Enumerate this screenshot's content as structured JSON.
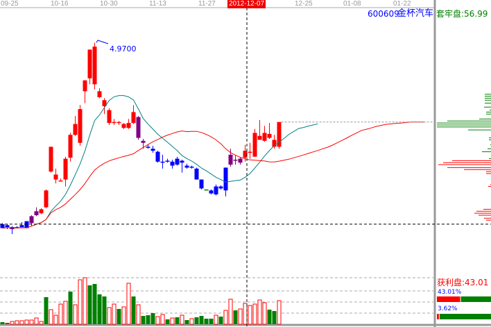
{
  "header": {
    "stock_code": "600609",
    "stock_name": "金杯汽车",
    "trapped_label": "套牢盘:56.99",
    "dates": [
      "09-25",
      "10-16",
      "10-30",
      "11-13",
      "11-27",
      "12-25",
      "01-08",
      "01-22"
    ],
    "cursor_date": "2012-12-07"
  },
  "peak_label": "4.9700",
  "profit_panel": {
    "profit_label": "获利盘:43.01",
    "bar1_label": "43.01%",
    "bar1_value": 43.01,
    "bar2_label": "3.62%",
    "bar2_value": 3.62
  },
  "colors": {
    "up": "#ff0000",
    "down": "#0000ff",
    "mark": "#800080",
    "ma_short": "#008080",
    "ma_long": "#ff0000",
    "vol_down": "#008000",
    "text_blue": "#0000ff",
    "text_green": "#008000",
    "text_red": "#ff0000"
  },
  "chart_data": {
    "type": "candlestick",
    "ohlc_fields": [
      "open",
      "high",
      "low",
      "close",
      "style"
    ],
    "candles": [
      [
        3.14,
        3.15,
        3.1,
        3.1,
        "down"
      ],
      [
        3.13,
        3.14,
        3.09,
        3.11,
        "down"
      ],
      [
        3.11,
        3.12,
        3.04,
        3.09,
        "down"
      ],
      [
        3.11,
        3.12,
        3.1,
        3.11,
        "down"
      ],
      [
        3.13,
        3.16,
        3.11,
        3.11,
        "down"
      ],
      [
        3.17,
        3.17,
        3.1,
        3.1,
        "down"
      ],
      [
        3.15,
        3.23,
        3.12,
        3.22,
        "mark"
      ],
      [
        3.23,
        3.31,
        3.22,
        3.27,
        "mark"
      ],
      [
        3.25,
        3.3,
        3.24,
        3.29,
        "up"
      ],
      [
        3.31,
        3.49,
        3.3,
        3.48,
        "up"
      ],
      [
        3.67,
        3.92,
        3.66,
        3.92,
        "up"
      ],
      [
        3.59,
        3.7,
        3.55,
        3.64,
        "up"
      ],
      [
        3.58,
        3.6,
        3.57,
        3.58,
        "up"
      ],
      [
        3.59,
        3.82,
        3.52,
        3.8,
        "up"
      ],
      [
        3.81,
        4.06,
        3.77,
        4.04,
        "up"
      ],
      [
        4.04,
        4.23,
        4.03,
        4.15,
        "up"
      ],
      [
        3.96,
        4.34,
        3.93,
        4.3,
        "up"
      ],
      [
        4.48,
        4.59,
        4.36,
        4.59,
        "up"
      ],
      [
        4.61,
        4.9,
        4.55,
        4.9,
        "up"
      ],
      [
        4.55,
        4.97,
        4.5,
        4.93,
        "up"
      ],
      [
        4.42,
        4.51,
        4.41,
        4.48,
        "up"
      ],
      [
        4.33,
        4.41,
        4.25,
        4.39,
        "up"
      ],
      [
        4.16,
        4.31,
        4.14,
        4.29,
        "up"
      ],
      [
        4.16,
        4.2,
        4.14,
        4.17,
        "up"
      ],
      [
        4.16,
        4.18,
        4.14,
        4.17,
        "up"
      ],
      [
        4.11,
        4.16,
        4.1,
        4.15,
        "up"
      ],
      [
        4.11,
        4.2,
        4.1,
        4.16,
        "up"
      ],
      [
        4.16,
        4.34,
        4.15,
        4.27,
        "up"
      ],
      [
        4.22,
        4.23,
        3.99,
        4.01,
        "mark"
      ],
      [
        3.98,
        4.0,
        3.9,
        3.96,
        "mark"
      ],
      [
        3.92,
        3.94,
        3.9,
        3.92,
        "down"
      ],
      [
        3.9,
        3.93,
        3.86,
        3.88,
        "down"
      ],
      [
        3.87,
        3.88,
        3.76,
        3.77,
        "down"
      ],
      [
        3.77,
        3.84,
        3.7,
        3.77,
        "down"
      ],
      [
        3.78,
        3.8,
        3.76,
        3.77,
        "down"
      ],
      [
        3.77,
        3.79,
        3.7,
        3.73,
        "down"
      ],
      [
        3.8,
        3.82,
        3.73,
        3.74,
        "down"
      ],
      [
        3.78,
        3.79,
        3.66,
        3.76,
        "down"
      ],
      [
        3.73,
        3.75,
        3.7,
        3.71,
        "down"
      ],
      [
        3.72,
        3.73,
        3.7,
        3.71,
        "down"
      ],
      [
        3.7,
        3.71,
        3.59,
        3.59,
        "down"
      ],
      [
        3.59,
        3.59,
        3.49,
        3.5,
        "down"
      ],
      [
        3.48,
        3.49,
        3.48,
        3.49,
        "flat"
      ],
      [
        3.48,
        3.49,
        3.44,
        3.45,
        "down"
      ],
      [
        3.52,
        3.54,
        3.43,
        3.44,
        "down"
      ],
      [
        3.52,
        3.53,
        3.49,
        3.5,
        "down"
      ],
      [
        3.71,
        3.71,
        3.42,
        3.48,
        "down"
      ],
      [
        3.74,
        3.9,
        3.72,
        3.84,
        "mark"
      ],
      [
        3.79,
        3.83,
        3.74,
        3.79,
        "mark"
      ],
      [
        3.8,
        3.81,
        3.74,
        3.76,
        "mark"
      ],
      [
        3.81,
        3.94,
        3.77,
        3.88,
        "up"
      ],
      [
        3.87,
        3.96,
        3.8,
        3.87,
        "up"
      ],
      [
        3.82,
        4.1,
        3.82,
        4.06,
        "up"
      ],
      [
        3.99,
        4.19,
        3.99,
        4.03,
        "up"
      ],
      [
        3.98,
        4.13,
        3.97,
        4.06,
        "up"
      ],
      [
        4.01,
        4.16,
        4.0,
        4.05,
        "up"
      ],
      [
        3.92,
        4.04,
        3.9,
        3.99,
        "up"
      ],
      [
        3.92,
        4.17,
        3.9,
        4.17,
        "up"
      ]
    ],
    "volume": [
      [
        3,
        "down"
      ],
      [
        2,
        "upfill"
      ],
      [
        4,
        "up"
      ],
      [
        5,
        "up"
      ],
      [
        5,
        "up"
      ],
      [
        6,
        "up"
      ],
      [
        6,
        "up"
      ],
      [
        9,
        "up"
      ],
      [
        4,
        "up"
      ],
      [
        39,
        "down"
      ],
      [
        21,
        "up"
      ],
      [
        13,
        "up"
      ],
      [
        29,
        "up"
      ],
      [
        33,
        "up"
      ],
      [
        47,
        "down"
      ],
      [
        28,
        "up"
      ],
      [
        64,
        "up"
      ],
      [
        67,
        "up"
      ],
      [
        56,
        "down"
      ],
      [
        58,
        "down"
      ],
      [
        43,
        "down"
      ],
      [
        40,
        "down"
      ],
      [
        24,
        "up"
      ],
      [
        29,
        "up"
      ],
      [
        22,
        "down"
      ],
      [
        25,
        "up"
      ],
      [
        59,
        "up"
      ],
      [
        40,
        "down"
      ],
      [
        28,
        "up"
      ],
      [
        12,
        "down"
      ],
      [
        13,
        "down"
      ],
      [
        16,
        "down"
      ],
      [
        11,
        "up"
      ],
      [
        14,
        "up"
      ],
      [
        7,
        "down"
      ],
      [
        9,
        "up"
      ],
      [
        10,
        "down"
      ],
      [
        13,
        "up"
      ],
      [
        6,
        "down"
      ],
      [
        8,
        "up"
      ],
      [
        10,
        "down"
      ],
      [
        12,
        "down"
      ],
      [
        8,
        "down"
      ],
      [
        8,
        "down"
      ],
      [
        13,
        "up"
      ],
      [
        11,
        "down"
      ],
      [
        20,
        "up"
      ],
      [
        36,
        "up"
      ],
      [
        20,
        "down"
      ],
      [
        22,
        "up"
      ],
      [
        30,
        "up"
      ],
      [
        27,
        "up"
      ],
      [
        29,
        "up"
      ],
      [
        35,
        "up"
      ],
      [
        31,
        "up"
      ],
      [
        21,
        "down"
      ],
      [
        19,
        "down"
      ],
      [
        34,
        "up"
      ]
    ],
    "chip_distribution": {
      "trapped": [
        [
          4.45,
          9
        ],
        [
          4.43,
          9
        ],
        [
          4.41,
          9
        ],
        [
          4.39,
          9
        ],
        [
          4.36,
          9
        ],
        [
          4.32,
          10
        ],
        [
          4.29,
          2
        ],
        [
          4.27,
          7
        ],
        [
          4.25,
          7
        ],
        [
          4.2,
          17
        ],
        [
          4.18,
          63
        ],
        [
          4.16,
          78
        ],
        [
          4.14,
          78
        ],
        [
          4.12,
          78
        ],
        [
          4.09,
          33
        ],
        [
          4.01,
          3
        ],
        [
          3.99,
          3
        ],
        [
          3.94,
          1
        ],
        [
          3.9,
          5
        ],
        [
          3.87,
          13
        ],
        [
          3.8,
          3
        ]
      ],
      "profit": [
        [
          3.78,
          56
        ],
        [
          3.76,
          69
        ],
        [
          3.74,
          76
        ],
        [
          3.71,
          63
        ],
        [
          3.69,
          39
        ],
        [
          3.67,
          7
        ],
        [
          3.65,
          7
        ],
        [
          3.54,
          1
        ],
        [
          3.52,
          4
        ],
        [
          3.29,
          11
        ],
        [
          3.27,
          21
        ],
        [
          3.25,
          24
        ],
        [
          3.23,
          18
        ],
        [
          3.2,
          10
        ],
        [
          3.18,
          7
        ]
      ]
    },
    "peak_price": 4.97,
    "cursor_price": 3.14
  }
}
